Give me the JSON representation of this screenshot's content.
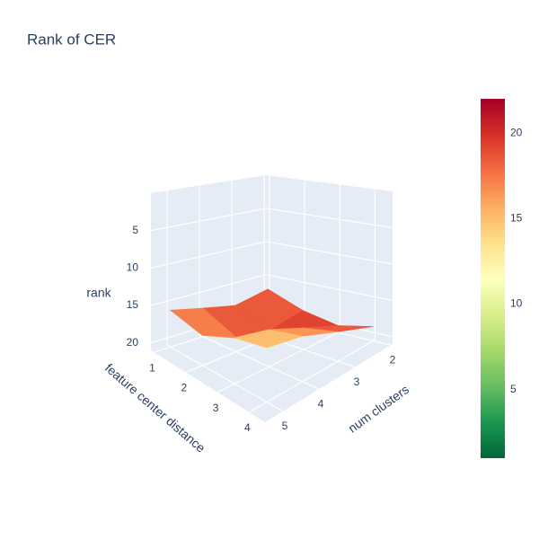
{
  "chart_data": {
    "type": "surface",
    "title": "Rank of CER",
    "x_label": "feature center distance",
    "y_label": "num clusters",
    "z_label": "rank",
    "x": [
      1,
      2,
      3,
      4
    ],
    "y": [
      2,
      3,
      4,
      5
    ],
    "z": [
      [
        17,
        19,
        20,
        19
      ],
      [
        18,
        20,
        18,
        17
      ],
      [
        17,
        19,
        16,
        15
      ],
      [
        16,
        17,
        15,
        14
      ]
    ],
    "xlim": [
      0.9,
      4.5
    ],
    "xticks": [
      1,
      2,
      3,
      4
    ],
    "ylim": [
      1.95,
      5.5
    ],
    "yticks": [
      2,
      3,
      4,
      5
    ],
    "zlim": [
      21,
      0
    ],
    "zticks": [
      5,
      10,
      15,
      20
    ],
    "clim": [
      1,
      22
    ],
    "cticks": [
      5,
      10,
      15,
      20
    ],
    "colorscale": [
      [
        0,
        "#006837"
      ],
      [
        0.1,
        "#1a9850"
      ],
      [
        0.2,
        "#66bd63"
      ],
      [
        0.3,
        "#a6d96a"
      ],
      [
        0.4,
        "#d9ef8b"
      ],
      [
        0.5,
        "#ffffbf"
      ],
      [
        0.6,
        "#fee08b"
      ],
      [
        0.7,
        "#fdae61"
      ],
      [
        0.8,
        "#f46d43"
      ],
      [
        0.9,
        "#d73027"
      ],
      [
        1,
        "#a50026"
      ]
    ],
    "grid": true
  }
}
